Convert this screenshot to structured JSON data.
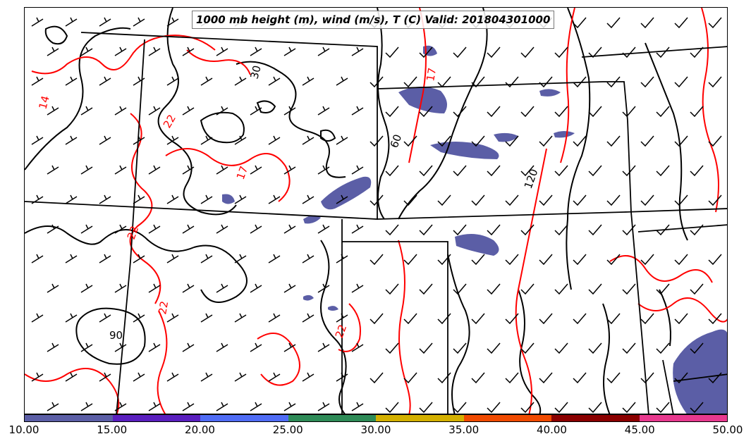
{
  "title": "1000 mb height (m), wind (m/s), T (C) Valid: 201804301000",
  "colors": {
    "height_contour": "#000000",
    "temperature_contour": "#ff0000",
    "state_border": "#000000",
    "wind_barb": "#000000"
  },
  "height_labels": [
    "30",
    "60",
    "90",
    "120"
  ],
  "temperature_labels": [
    "14",
    "17",
    "17",
    "22",
    "22",
    "22",
    "22"
  ],
  "wind_barb": {
    "glyph": "wind-barb-icon",
    "density": "regular grid"
  },
  "colorbar": {
    "colors": [
      "#5b5ea6",
      "#5a1fbf",
      "#4f6cf5",
      "#2e8b57",
      "#d4b000",
      "#f04a00",
      "#8b0000",
      "#e8398e"
    ],
    "tick_labels": [
      "10.00",
      "15.00",
      "20.00",
      "25.00",
      "30.00",
      "35.00",
      "40.00",
      "45.00",
      "50.00"
    ]
  }
}
